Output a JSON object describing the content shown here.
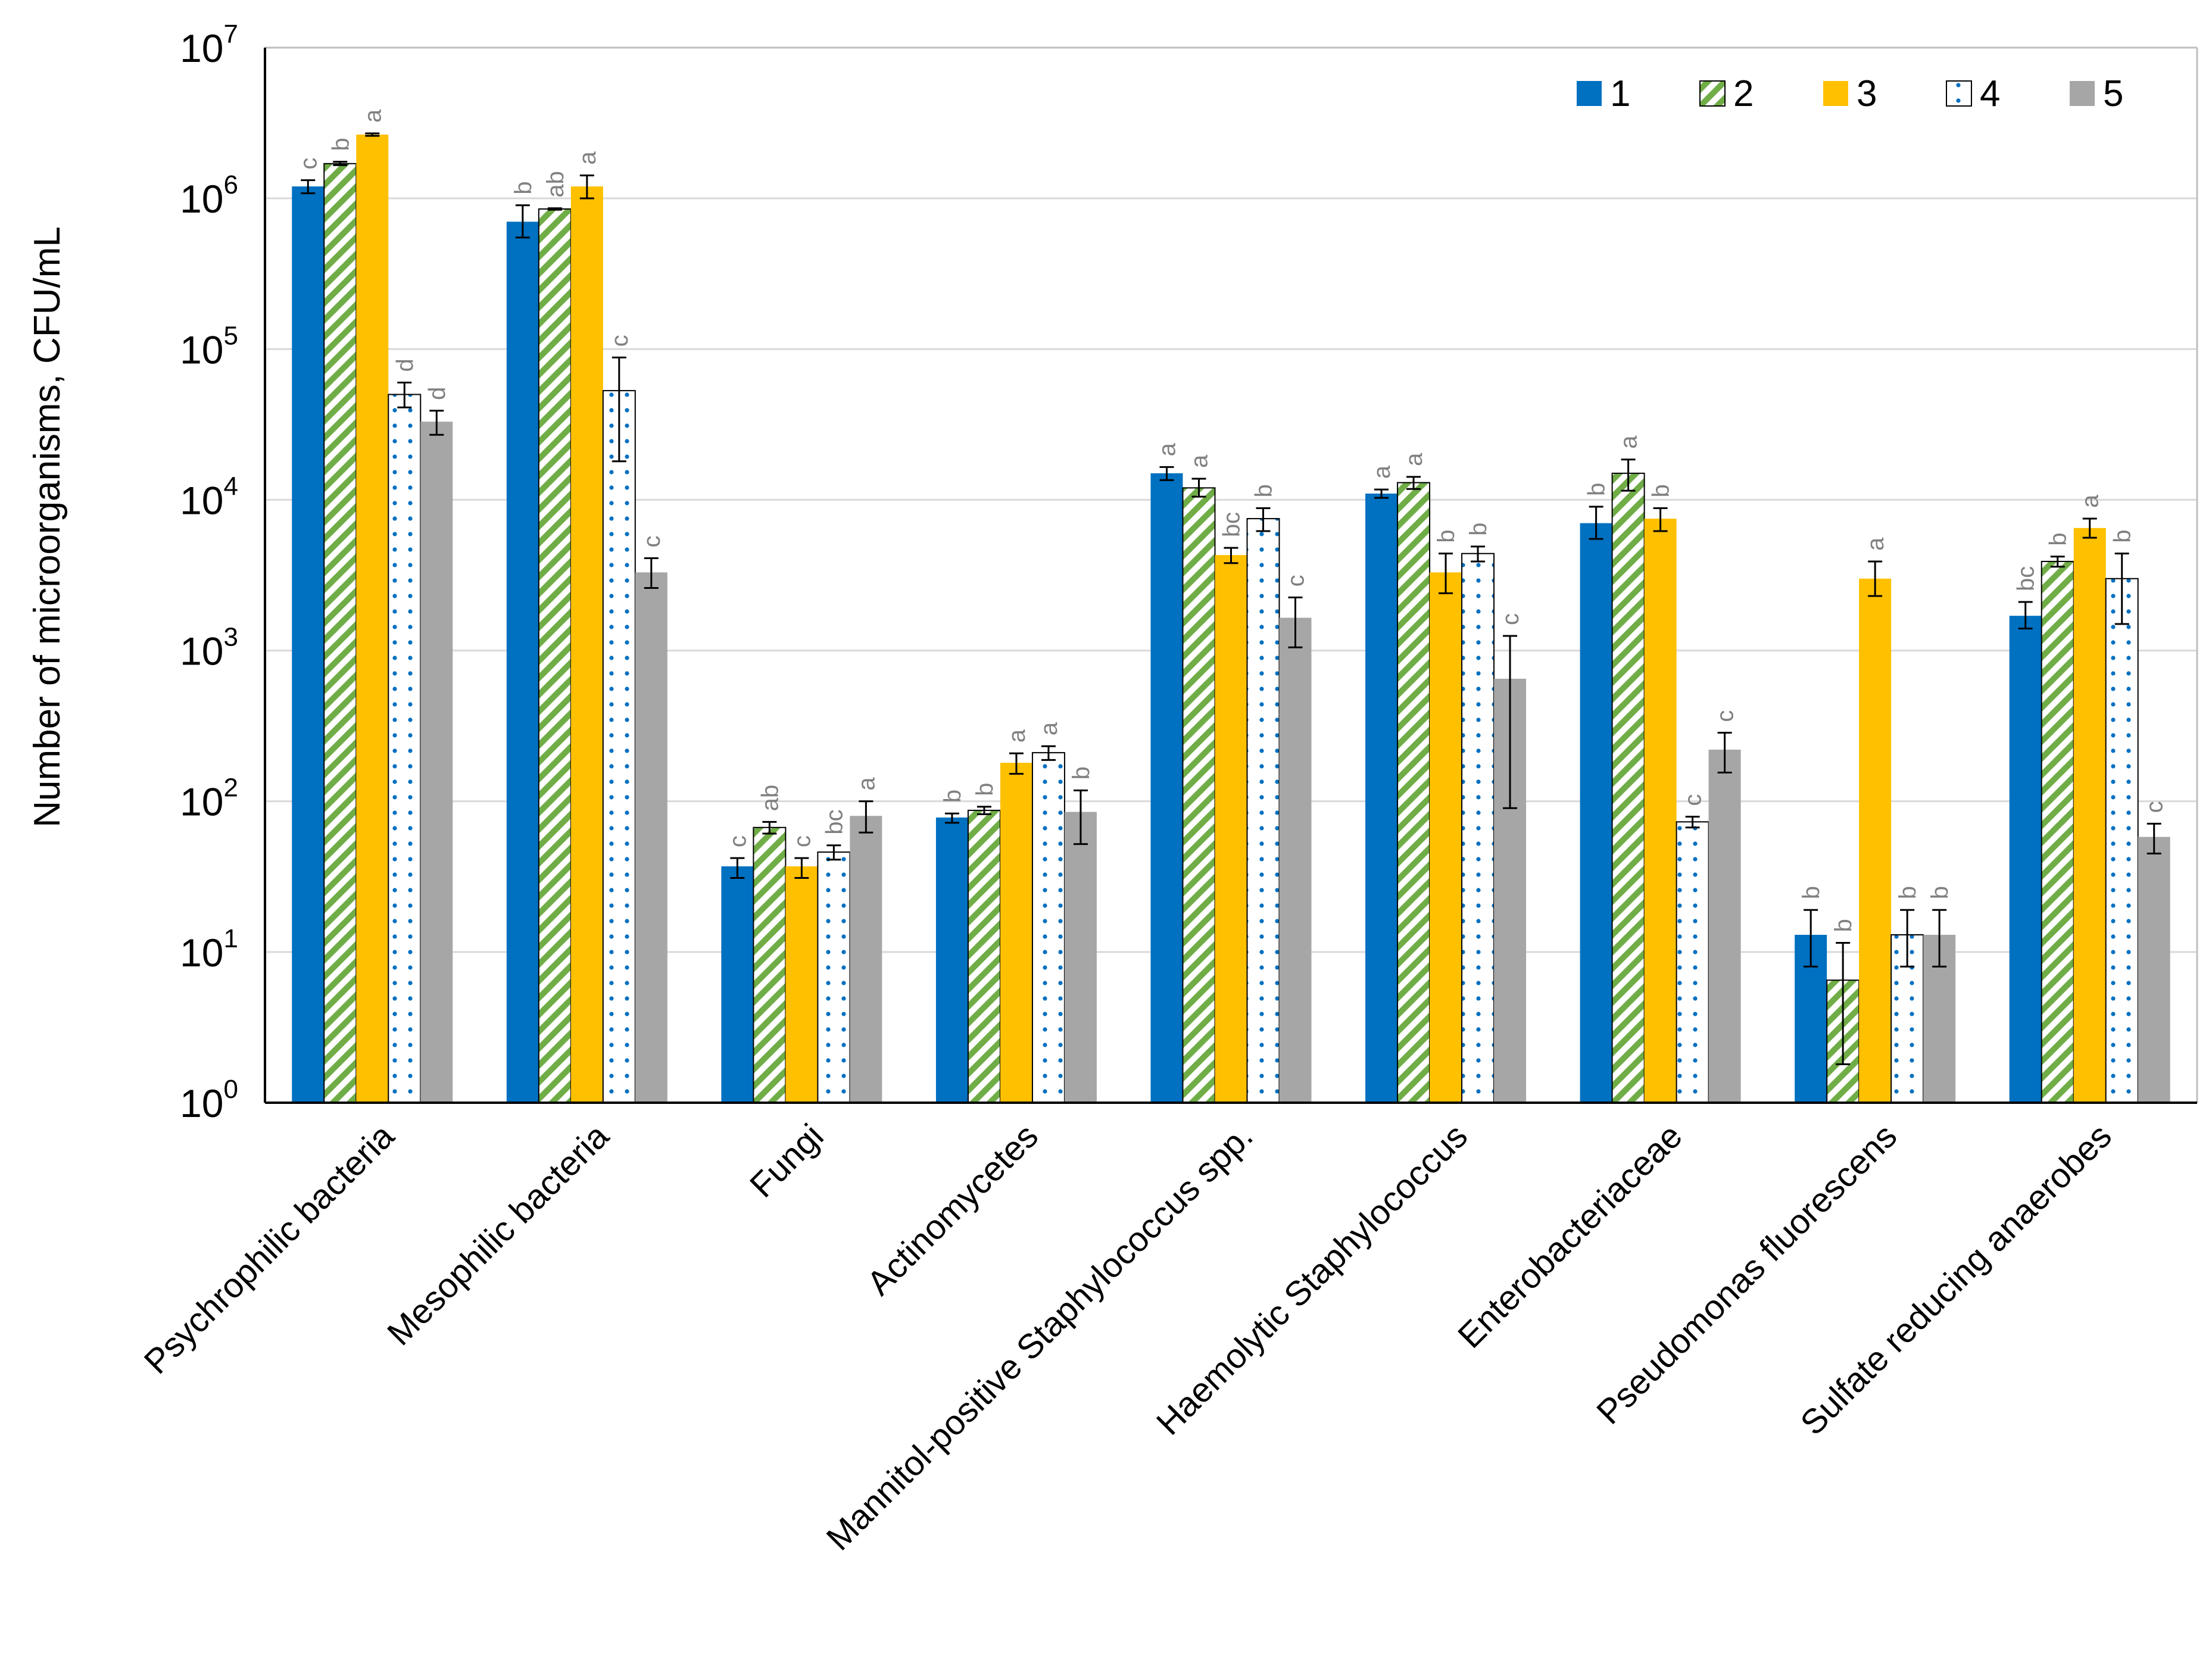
{
  "chart_data": {
    "type": "bar",
    "scale": "log",
    "ylabel": "Number of microorganisms,  CFU/mL",
    "ylim": [
      1,
      10000000
    ],
    "yticks": [
      {
        "base": "10",
        "exp": "0"
      },
      {
        "base": "10",
        "exp": "1"
      },
      {
        "base": "10",
        "exp": "2"
      },
      {
        "base": "10",
        "exp": "3"
      },
      {
        "base": "10",
        "exp": "4"
      },
      {
        "base": "10",
        "exp": "5"
      },
      {
        "base": "10",
        "exp": "6"
      },
      {
        "base": "10",
        "exp": "7"
      }
    ],
    "grid": true,
    "legend_position": "top-right",
    "categories": [
      "Psychrophilic bacteria",
      "Mesophilic bacteria",
      "Fungi",
      "Actinomycetes",
      "Mannitol-positive Staphylococcus spp.",
      "Haemolytic Staphylococcus",
      "Enterobacteriaceae",
      "Pseudomonas fluorescens",
      "Sulfate reducing anaerobes"
    ],
    "series": [
      {
        "name": "1",
        "color": "#0070C0",
        "pattern": "solid",
        "values": [
          1200000,
          700000,
          37,
          78,
          15000,
          11000,
          7000,
          13,
          1700
        ],
        "errors": [
          [
            1080000,
            1320000
          ],
          [
            550000,
            900000
          ],
          [
            31,
            42
          ],
          [
            72,
            83
          ],
          [
            13500,
            16500
          ],
          [
            10300,
            11700
          ],
          [
            5500,
            9000
          ],
          [
            8,
            19
          ],
          [
            1400,
            2100
          ]
        ],
        "letters": [
          "c",
          "b",
          "c",
          "b",
          "a",
          "a",
          "b",
          "b",
          "bc"
        ]
      },
      {
        "name": "2",
        "color": "#70AD47",
        "pattern": "diagonal",
        "values": [
          1700000,
          850000,
          67,
          87,
          12000,
          13000,
          15000,
          6.5,
          3900
        ],
        "errors": [
          [
            1660000,
            1750000
          ],
          [
            840000,
            860000
          ],
          [
            61,
            73
          ],
          [
            82,
            92
          ],
          [
            10500,
            13800
          ],
          [
            11800,
            14200
          ],
          [
            11500,
            18500
          ],
          [
            1.8,
            11.5
          ],
          [
            3600,
            4200
          ]
        ],
        "letters": [
          "b",
          "ab",
          "ab",
          "b",
          "a",
          "a",
          "a",
          "b",
          "b"
        ]
      },
      {
        "name": "3",
        "color": "#FFC000",
        "pattern": "solid",
        "values": [
          2650000,
          1200000,
          37,
          180,
          4300,
          3300,
          7500,
          3000,
          6500
        ],
        "errors": [
          [
            2600000,
            2700000
          ],
          [
            1000000,
            1420000
          ],
          [
            31,
            42
          ],
          [
            152,
            208
          ],
          [
            3800,
            4800
          ],
          [
            2400,
            4400
          ],
          [
            6200,
            8800
          ],
          [
            2300,
            3900
          ],
          [
            5600,
            7500
          ]
        ],
        "letters": [
          "a",
          "a",
          "c",
          "a",
          "bc",
          "b",
          "b",
          "a",
          "a"
        ]
      },
      {
        "name": "4",
        "color": "#0070C0",
        "pattern": "dotted",
        "values": [
          50000,
          53000,
          46,
          210,
          7500,
          4400,
          73,
          13,
          3000
        ],
        "errors": [
          [
            41000,
            60000
          ],
          [
            18000,
            88000
          ],
          [
            41,
            51
          ],
          [
            188,
            232
          ],
          [
            6200,
            8800
          ],
          [
            3900,
            4900
          ],
          [
            67,
            79
          ],
          [
            8,
            19
          ],
          [
            1500,
            4400
          ]
        ],
        "letters": [
          "d",
          "c",
          "bc",
          "a",
          "b",
          "b",
          "c",
          "b",
          "b"
        ]
      },
      {
        "name": "5",
        "color": "#A6A6A6",
        "pattern": "solid",
        "values": [
          33000,
          3300,
          80,
          85,
          1650,
          650,
          220,
          13,
          58
        ],
        "errors": [
          [
            27000,
            39000
          ],
          [
            2600,
            4100
          ],
          [
            62,
            100
          ],
          [
            52,
            118
          ],
          [
            1050,
            2250
          ],
          [
            90,
            1250
          ],
          [
            155,
            285
          ],
          [
            8,
            19
          ],
          [
            45,
            71
          ]
        ],
        "letters": [
          "d",
          "c",
          "a",
          "b",
          "c",
          "c",
          "c",
          "b",
          "c"
        ]
      }
    ]
  }
}
